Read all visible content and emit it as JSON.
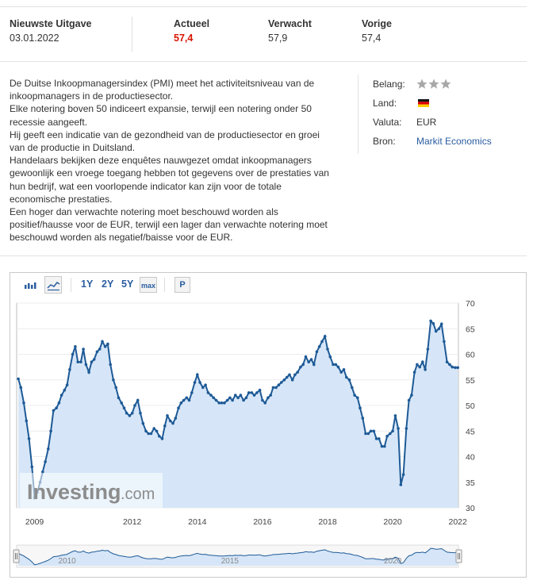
{
  "release": {
    "latest_label": "Nieuwste Uitgave",
    "latest_date": "03.01.2022",
    "actual_label": "Actueel",
    "actual_value": "57,4",
    "forecast_label": "Verwacht",
    "forecast_value": "57,9",
    "previous_label": "Vorige",
    "previous_value": "57,4"
  },
  "description": [
    "De Duitse Inkoopmanagersindex (PMI) meet het activiteitsniveau van de inkoopmanagers in de productiesector.",
    "Elke notering boven 50 indiceert expansie, terwijl een notering onder 50 recessie aangeeft.",
    "Hij geeft een indicatie van de gezondheid van de productiesector en groei van de productie in Duitsland.",
    "Handelaars bekijken deze enquêtes nauwgezet omdat inkoopmanagers gewoonlijk een vroege toegang hebben tot gegevens over de prestaties van hun bedrijf, wat een voorlopende indicator kan zijn voor de totale economische prestaties.",
    "Een hoger dan verwachte notering moet beschouwd worden als positief/hausse voor de EUR, terwijl een lager dan verwachte notering moet beschouwd worden als negatief/baisse voor de EUR."
  ],
  "meta": {
    "importance_label": "Belang:",
    "importance_stars": 3,
    "country_label": "Land:",
    "country_flag_icon": "germany-flag-icon",
    "currency_label": "Valuta:",
    "currency_value": "EUR",
    "source_label": "Bron:",
    "source_value": "Markit Economics"
  },
  "toolbar": {
    "range_1y": "1Y",
    "range_2y": "2Y",
    "range_5y": "5Y",
    "range_max": "max",
    "p_button": "P"
  },
  "watermark": {
    "brand": "Investing",
    "suffix": ".com"
  },
  "colors": {
    "actual_red": "#d91400",
    "line": "#1e5a96",
    "fill": "#d6e6f8",
    "link": "#2a5d9f"
  },
  "chart_data": {
    "type": "area",
    "x_unit": "year",
    "ylim": [
      30,
      70
    ],
    "xlim": [
      2008.45,
      2022.02
    ],
    "y_ticks": [
      "30",
      "35",
      "40",
      "45",
      "50",
      "55",
      "60",
      "65",
      "70"
    ],
    "x_ticks": [
      "2009",
      "2012",
      "2014",
      "2016",
      "2018",
      "2020",
      "2022"
    ],
    "navigator_ticks": [
      "2010",
      "2015",
      "2020"
    ],
    "series": [
      {
        "points": [
          [
            2008.5,
            55.2
          ],
          [
            2008.58,
            53.5
          ],
          [
            2008.67,
            50.5
          ],
          [
            2008.75,
            47.0
          ],
          [
            2008.83,
            43.5
          ],
          [
            2008.92,
            38.0
          ],
          [
            2009.0,
            32.0
          ],
          [
            2009.08,
            33.0
          ],
          [
            2009.17,
            35.0
          ],
          [
            2009.25,
            37.0
          ],
          [
            2009.33,
            39.0
          ],
          [
            2009.42,
            41.5
          ],
          [
            2009.5,
            45.0
          ],
          [
            2009.58,
            49.0
          ],
          [
            2009.67,
            49.5
          ],
          [
            2009.75,
            50.5
          ],
          [
            2009.83,
            52.0
          ],
          [
            2009.92,
            53.0
          ],
          [
            2010.0,
            54.0
          ],
          [
            2010.08,
            57.0
          ],
          [
            2010.17,
            60.0
          ],
          [
            2010.25,
            61.5
          ],
          [
            2010.33,
            58.5
          ],
          [
            2010.42,
            58.5
          ],
          [
            2010.5,
            61.0
          ],
          [
            2010.58,
            58.0
          ],
          [
            2010.67,
            56.5
          ],
          [
            2010.75,
            58.5
          ],
          [
            2010.83,
            59.0
          ],
          [
            2010.92,
            60.5
          ],
          [
            2011.0,
            61.0
          ],
          [
            2011.08,
            62.5
          ],
          [
            2011.17,
            61.5
          ],
          [
            2011.25,
            62.0
          ],
          [
            2011.33,
            58.0
          ],
          [
            2011.42,
            55.0
          ],
          [
            2011.5,
            53.5
          ],
          [
            2011.58,
            51.5
          ],
          [
            2011.67,
            50.5
          ],
          [
            2011.75,
            49.5
          ],
          [
            2011.83,
            48.5
          ],
          [
            2011.92,
            48.0
          ],
          [
            2012.0,
            48.5
          ],
          [
            2012.08,
            50.0
          ],
          [
            2012.17,
            51.0
          ],
          [
            2012.25,
            48.5
          ],
          [
            2012.33,
            46.5
          ],
          [
            2012.42,
            45.0
          ],
          [
            2012.5,
            44.5
          ],
          [
            2012.58,
            44.5
          ],
          [
            2012.67,
            45.5
          ],
          [
            2012.75,
            45.0
          ],
          [
            2012.83,
            44.0
          ],
          [
            2012.92,
            43.5
          ],
          [
            2013.0,
            46.0
          ],
          [
            2013.08,
            48.0
          ],
          [
            2013.17,
            47.0
          ],
          [
            2013.25,
            46.5
          ],
          [
            2013.33,
            47.5
          ],
          [
            2013.42,
            49.5
          ],
          [
            2013.5,
            50.5
          ],
          [
            2013.58,
            51.0
          ],
          [
            2013.67,
            51.5
          ],
          [
            2013.75,
            51.0
          ],
          [
            2013.83,
            52.5
          ],
          [
            2013.92,
            54.5
          ],
          [
            2014.0,
            56.0
          ],
          [
            2014.08,
            54.5
          ],
          [
            2014.17,
            53.5
          ],
          [
            2014.25,
            54.0
          ],
          [
            2014.33,
            52.5
          ],
          [
            2014.42,
            52.0
          ],
          [
            2014.5,
            51.5
          ],
          [
            2014.58,
            51.0
          ],
          [
            2014.67,
            50.5
          ],
          [
            2014.75,
            50.5
          ],
          [
            2014.83,
            50.5
          ],
          [
            2014.92,
            51.0
          ],
          [
            2015.0,
            51.5
          ],
          [
            2015.08,
            51.0
          ],
          [
            2015.17,
            52.0
          ],
          [
            2015.25,
            51.5
          ],
          [
            2015.33,
            52.0
          ],
          [
            2015.42,
            51.0
          ],
          [
            2015.5,
            51.5
          ],
          [
            2015.58,
            52.5
          ],
          [
            2015.67,
            52.5
          ],
          [
            2015.75,
            52.0
          ],
          [
            2015.83,
            52.5
          ],
          [
            2015.92,
            53.0
          ],
          [
            2016.0,
            51.0
          ],
          [
            2016.08,
            50.5
          ],
          [
            2016.17,
            51.5
          ],
          [
            2016.25,
            52.0
          ],
          [
            2016.33,
            53.5
          ],
          [
            2016.42,
            53.5
          ],
          [
            2016.5,
            54.0
          ],
          [
            2016.58,
            54.5
          ],
          [
            2016.67,
            55.0
          ],
          [
            2016.75,
            55.5
          ],
          [
            2016.83,
            56.0
          ],
          [
            2016.92,
            55.0
          ],
          [
            2017.0,
            56.0
          ],
          [
            2017.08,
            56.5
          ],
          [
            2017.17,
            57.5
          ],
          [
            2017.25,
            58.0
          ],
          [
            2017.33,
            59.5
          ],
          [
            2017.42,
            58.5
          ],
          [
            2017.5,
            59.0
          ],
          [
            2017.58,
            58.0
          ],
          [
            2017.67,
            60.5
          ],
          [
            2017.75,
            61.5
          ],
          [
            2017.83,
            62.5
          ],
          [
            2017.92,
            63.5
          ],
          [
            2018.0,
            61.0
          ],
          [
            2018.08,
            59.5
          ],
          [
            2018.17,
            58.0
          ],
          [
            2018.25,
            58.0
          ],
          [
            2018.33,
            57.5
          ],
          [
            2018.42,
            56.5
          ],
          [
            2018.5,
            57.0
          ],
          [
            2018.58,
            55.5
          ],
          [
            2018.67,
            55.0
          ],
          [
            2018.75,
            53.5
          ],
          [
            2018.83,
            52.0
          ],
          [
            2018.92,
            51.5
          ],
          [
            2019.0,
            49.5
          ],
          [
            2019.08,
            47.5
          ],
          [
            2019.17,
            44.5
          ],
          [
            2019.25,
            44.5
          ],
          [
            2019.33,
            45.0
          ],
          [
            2019.42,
            45.0
          ],
          [
            2019.5,
            43.5
          ],
          [
            2019.58,
            43.5
          ],
          [
            2019.67,
            42.0
          ],
          [
            2019.75,
            42.0
          ],
          [
            2019.83,
            44.0
          ],
          [
            2019.92,
            44.5
          ],
          [
            2020.0,
            45.0
          ],
          [
            2020.08,
            48.0
          ],
          [
            2020.17,
            45.5
          ],
          [
            2020.25,
            34.5
          ],
          [
            2020.33,
            36.5
          ],
          [
            2020.42,
            45.5
          ],
          [
            2020.5,
            51.0
          ],
          [
            2020.58,
            52.0
          ],
          [
            2020.67,
            56.5
          ],
          [
            2020.75,
            58.0
          ],
          [
            2020.83,
            57.5
          ],
          [
            2020.92,
            58.5
          ],
          [
            2021.0,
            57.0
          ],
          [
            2021.08,
            61.0
          ],
          [
            2021.17,
            66.5
          ],
          [
            2021.25,
            66.0
          ],
          [
            2021.33,
            64.5
          ],
          [
            2021.42,
            65.0
          ],
          [
            2021.5,
            65.9
          ],
          [
            2021.58,
            62.5
          ],
          [
            2021.67,
            58.5
          ],
          [
            2021.75,
            58.0
          ],
          [
            2021.83,
            57.5
          ],
          [
            2021.92,
            57.4
          ],
          [
            2022.0,
            57.4
          ]
        ]
      }
    ]
  }
}
